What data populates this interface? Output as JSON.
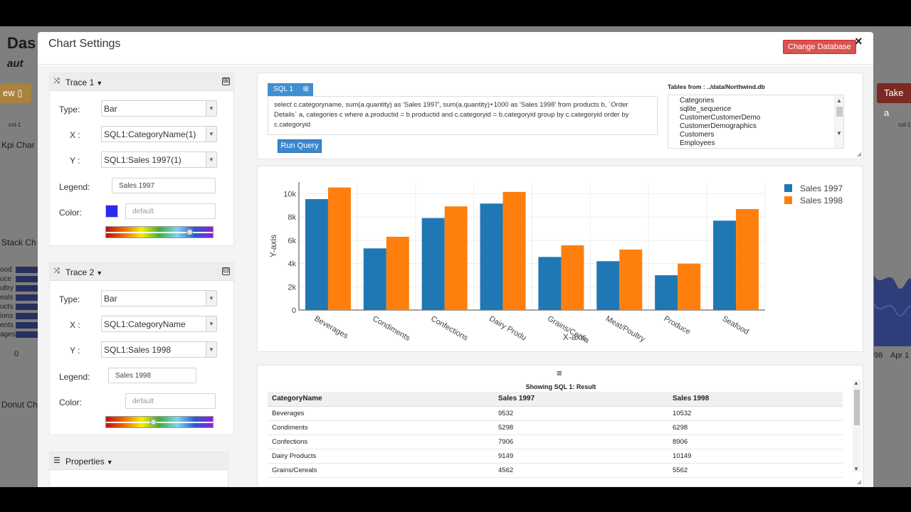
{
  "background": {
    "logo_text": "Das",
    "logo_sub": "aut",
    "left_button": "ew",
    "right_button": "Take a",
    "kpi_label": "Kpi Char",
    "stack_label": "Stack Ch",
    "donut_label": "Donut Ch",
    "col_label_left": "col-1",
    "col_label_right": "col-1",
    "bar_labels": [
      "ood",
      "uce",
      "ultry",
      "eals",
      "ucts",
      "ions",
      "ents",
      "ages"
    ],
    "zero_label": "0",
    "date_labels": [
      "98",
      "Apr 1"
    ]
  },
  "modal": {
    "title": "Chart Settings",
    "change_db_label": "Change Database",
    "close_label": "×"
  },
  "traces": [
    {
      "title": "Trace 1",
      "toggle": "⊞",
      "type_label": "Type:",
      "type_value": "Bar",
      "x_label": "X :",
      "x_value": "SQL1:CategoryName(1)",
      "y_label": "Y :",
      "y_value": "SQL1:Sales 1997(1)",
      "legend_label": "Legend:",
      "legend_value": "Sales 1997",
      "color_label": "Color:",
      "color_value": "default",
      "swatch": "#2a2af2"
    },
    {
      "title": "Trace 2",
      "toggle": "⊟",
      "type_label": "Type:",
      "type_value": "Bar",
      "x_label": "X :",
      "x_value": "SQL1:CategoryName",
      "y_label": "Y :",
      "y_value": "SQL1:Sales 1998",
      "legend_label": "Legend:",
      "legend_value": "Sales 1998",
      "color_label": "Color:",
      "color_value": "default"
    }
  ],
  "properties": {
    "title": "Properties"
  },
  "sql": {
    "tab_label": "SQL 1",
    "tab_plus": "⊞",
    "query": "select c.categoryname, sum(a.quantity) as 'Sales 1997', sum(a.quantity)+1000 as 'Sales 1998' from products b, `Order Details` a, categories c where a.productid = b.productid and c.categoryid = b.categoryid group by c.categoryid order by c.categoryid",
    "run_label": "Run Query",
    "tables_label": "Tables from : ../data/Northwind.db",
    "tables": [
      "Categories",
      "sqlite_sequence",
      "CustomerCustomerDemo",
      "CustomerDemographics",
      "Customers",
      "Employees"
    ]
  },
  "chart_data": {
    "type": "bar",
    "categories": [
      "Beverages",
      "Condiments",
      "Confections",
      "Dairy Products",
      "Grains/Cereals",
      "Meat/Poultry",
      "Produce",
      "Seafood"
    ],
    "tick_labels": [
      "Beverages",
      "Condiments",
      "Confections",
      "Dairy Produ",
      "Grains/Cerea",
      "Meat/Poultry",
      "Produce",
      "Seafood"
    ],
    "series": [
      {
        "name": "Sales 1997",
        "color": "#1f77b4",
        "values": [
          9532,
          5298,
          7906,
          9149,
          4562,
          4199,
          2990,
          7681
        ]
      },
      {
        "name": "Sales 1998",
        "color": "#ff7f0e",
        "values": [
          10532,
          6298,
          8906,
          10149,
          5562,
          5199,
          3990,
          8681
        ]
      }
    ],
    "xlabel": "X-axis",
    "ylabel": "Y-axis",
    "ylim": [
      0,
      11000
    ],
    "yticks": [
      0,
      2000,
      4000,
      6000,
      8000,
      10000
    ],
    "ytick_labels": [
      "0",
      "2k",
      "4k",
      "6k",
      "8k",
      "10k"
    ],
    "grid": true,
    "legend": "top-right"
  },
  "result_table": {
    "menu_icon": "≡",
    "title": "Showing SQL 1: Result",
    "columns": [
      "CategoryName",
      "Sales 1997",
      "Sales 1998"
    ],
    "rows": [
      [
        "Beverages",
        "9532",
        "10532"
      ],
      [
        "Condiments",
        "5298",
        "6298"
      ],
      [
        "Confections",
        "7906",
        "8906"
      ],
      [
        "Dairy Products",
        "9149",
        "10149"
      ],
      [
        "Grains/Cereals",
        "4562",
        "5562"
      ]
    ]
  }
}
